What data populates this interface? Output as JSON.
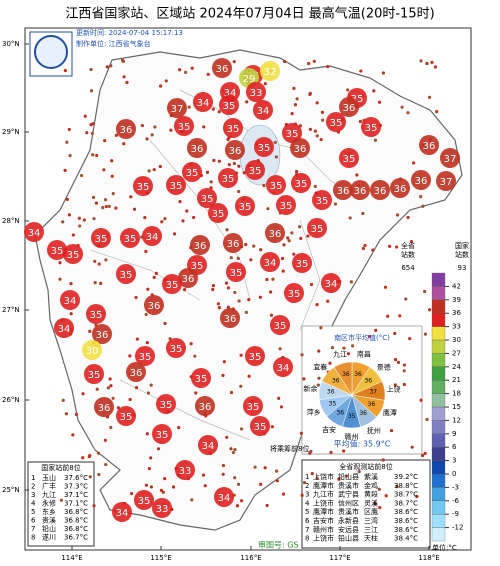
{
  "title": "江西省国家站、区域站    2024年07月04日    最高气温(20时-15时)",
  "update_time": "更新时间: 2024-07-04 15:17:13",
  "producer": "制作单位: 江西省气象台",
  "lat_labels": [
    "30°N",
    "29°N",
    "28°N",
    "27°N",
    "26°N",
    "25°N"
  ],
  "lon_labels": [
    "114°E",
    "115°E",
    "116°E",
    "117°E",
    "118°E"
  ],
  "counts": {
    "prov_label": "全省\n站数",
    "prov": 654,
    "nat_label": "国家\n站数",
    "nat": 93
  },
  "colorbar": {
    "lim": [
      -15,
      45
    ],
    "ticks": [
      42,
      39,
      36,
      33,
      30,
      27,
      24,
      21,
      18,
      15,
      12,
      9,
      6,
      3,
      0,
      -3,
      -6,
      -9,
      -12
    ],
    "unit": "单位:°C",
    "colors": [
      "#d0f0ff",
      "#a0e0ff",
      "#70c8f0",
      "#40a0e0",
      "#2070d0",
      "#1048b0",
      "#404090",
      "#6060b0",
      "#8080c0",
      "#a0a0d0",
      "#90c0a0",
      "#60b060",
      "#40a040",
      "#80c040",
      "#c0d040",
      "#f0e040",
      "#e02020",
      "#c03020",
      "#b050a0",
      "#8040a0"
    ]
  },
  "stations": [
    36,
    35,
    32,
    29,
    34,
    33,
    37,
    34,
    34,
    35,
    35,
    36,
    36,
    35,
    35,
    35,
    35,
    35,
    36,
    36,
    35,
    36,
    35,
    36,
    37,
    37,
    36,
    36,
    36,
    36,
    36,
    35,
    35,
    35,
    35,
    35,
    35,
    35,
    35,
    35,
    35,
    35,
    35,
    35,
    34,
    35,
    35,
    34,
    36,
    36,
    35,
    36,
    35,
    35,
    36,
    35,
    35,
    34,
    35,
    34,
    35,
    36,
    35,
    36,
    36,
    35,
    34,
    30,
    35,
    35,
    35,
    35,
    34,
    35,
    35,
    36,
    35,
    36,
    35,
    35,
    35,
    36,
    35,
    34,
    33,
    34,
    35,
    33,
    34,
    34
  ],
  "pie": {
    "title": "南区市平均值(°C)",
    "names": [
      "南昌",
      "景德",
      "上饶",
      "鹰潭",
      "抚州",
      "赣州",
      "吉安",
      "萍乡",
      "新余",
      "宜春",
      "九江"
    ],
    "values": [
      36,
      36,
      37,
      36,
      36,
      35,
      36,
      35,
      36,
      36,
      36
    ],
    "colors": [
      "#f0a030",
      "#f0c040",
      "#e08020",
      "#f0a030",
      "#a0c0e0",
      "#5090d0",
      "#70a8e0",
      "#a0c8f0",
      "#c0d8f0",
      "#f0b040",
      "#e89030"
    ],
    "average": "平均值: 35.9°C"
  },
  "legend_note": "将乘筹前8位",
  "national_top": {
    "title": "国家站前8位",
    "rows": [
      [
        "1",
        "玉山",
        "37.6°C"
      ],
      [
        "2",
        "广丰",
        "37.3°C"
      ],
      [
        "3",
        "九江",
        "37.1°C"
      ],
      [
        "4",
        "永修",
        "37.1°C"
      ],
      [
        "5",
        "东乡",
        "36.8°C"
      ],
      [
        "6",
        "贵溪",
        "36.8°C"
      ],
      [
        "7",
        "铅山",
        "36.8°C"
      ],
      [
        "8",
        "遂川",
        "36.7°C"
      ]
    ]
  },
  "all_top": {
    "title": "全省观测站前8位",
    "rows": [
      [
        "1",
        "上饶市",
        "铅山县",
        "紫溪",
        "39.2°C"
      ],
      [
        "2",
        "鹰潭市",
        "贵溪市",
        "金鸡",
        "38.8°C"
      ],
      [
        "3",
        "九江市",
        "武宁县",
        "黄段",
        "38.7°C"
      ],
      [
        "4",
        "上饶市",
        "信州区",
        "灵溪",
        "38.7°C"
      ],
      [
        "5",
        "鹰潭市",
        "贵溪市",
        "区鹰",
        "38.6°C"
      ],
      [
        "6",
        "吉安市",
        "永新县",
        "三湾",
        "38.6°C"
      ],
      [
        "7",
        "赣州市",
        "安远县",
        "三江",
        "38.6°C"
      ],
      [
        "8",
        "上饶市",
        "铅山县",
        "天柱",
        "38.4°C"
      ]
    ]
  },
  "footer": "审图号: GS (2017) 3320号"
}
